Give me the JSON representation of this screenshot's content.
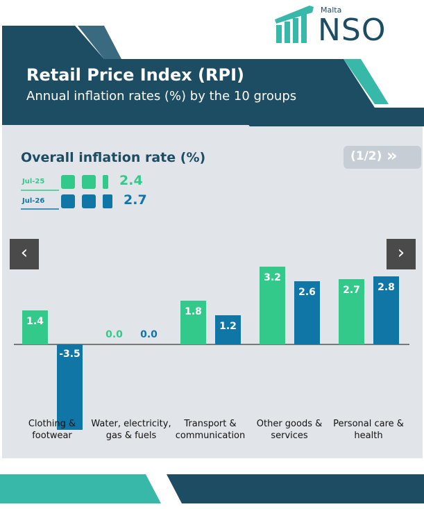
{
  "logo": {
    "small": "Malta",
    "big": "NSO"
  },
  "header": {
    "title": "Retail Price Index (RPI)",
    "subtitle": "Annual inflation rates (%) by the 10 groups"
  },
  "pager": {
    "label": "(1/2)",
    "icon": "»"
  },
  "nav": {
    "prev": "‹",
    "next": "›"
  },
  "chart_data": {
    "type": "bar",
    "title": "Overall inflation rate (%)",
    "overall": [
      2.4,
      2.7
    ],
    "categories": [
      "Clothing & footwear",
      "Water, electricity, gas & fuels",
      "Transport & communication",
      "Other goods & services",
      "Personal care & health"
    ],
    "series": [
      {
        "name": "Jul-25",
        "color": "#33c98b",
        "values": [
          1.4,
          0,
          1.8,
          3.2,
          2.7
        ],
        "value_labels": [
          "1.4",
          "0.0",
          "1.8",
          "3.2",
          "2.7"
        ]
      },
      {
        "name": "Jul-26",
        "color": "#0f76a6",
        "values": [
          -3.5,
          0,
          1.2,
          2.6,
          2.8
        ],
        "value_labels": [
          "-3.5",
          "0.0",
          "1.2",
          "2.6",
          "2.8"
        ]
      }
    ]
  }
}
